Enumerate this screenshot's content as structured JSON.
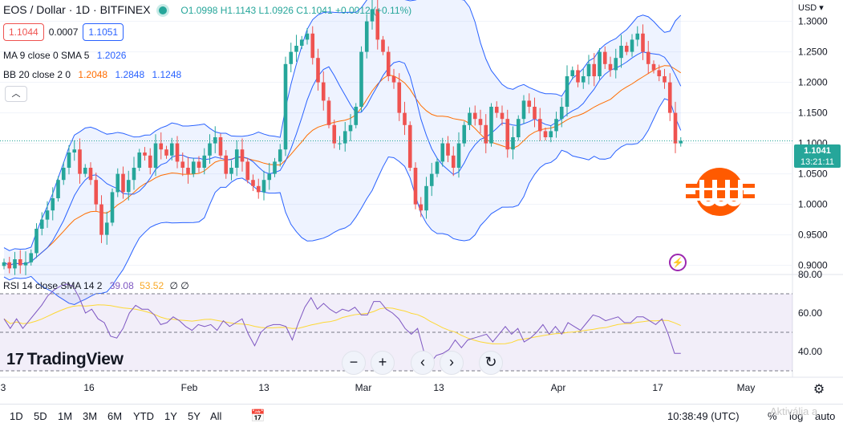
{
  "header": {
    "symbol": "EOS / Dollar · 1D · BITFINEX",
    "ohlc": "O1.0998  H1.1143  L1.0926  C1.1041  +0.0012 (+0.11%)"
  },
  "prices": {
    "sell": "1.1044",
    "spread": "0.0007",
    "buy": "1.1051"
  },
  "indicators": {
    "ma_label": "MA 9 close 0 SMA 5",
    "ma_value": "1.2026",
    "bb_label": "BB 20 close 2 0",
    "bb_mid": "1.2048",
    "bb_up": "1.2848",
    "bb_low": "1.1248",
    "rsi_label": "RSI 14 close SMA 14 2",
    "rsi_value": "39.08",
    "rsi_sma": "53.52",
    "rsi_extra": "∅ ∅"
  },
  "last_price": {
    "value": "1.1041",
    "countdown": "13:21:11"
  },
  "logo": "TradingView",
  "watermark": "Aktiválja a",
  "toolbar": {
    "ranges": [
      "1D",
      "5D",
      "1M",
      "3M",
      "6M",
      "YTD",
      "1Y",
      "5Y",
      "All"
    ],
    "time": "10:38:49 (UTC)",
    "percent": "%",
    "log": "log",
    "auto": "auto"
  },
  "nav_buttons": {
    "zoom_out": "−",
    "zoom_in": "+",
    "left": "‹",
    "right": "›",
    "reset": "↻"
  },
  "colors": {
    "up": "#26a69a",
    "down": "#ef5350",
    "band": "#2962ff",
    "basis": "#ff6d00",
    "rsi": "#7e57c2",
    "rsi_ma": "#fdd835"
  },
  "chart_data": {
    "type": "candlestick",
    "currency": "USD",
    "price_axis": {
      "ticks": [
        "1.3000",
        "1.2500",
        "1.2000",
        "1.1500",
        "1.1000",
        "1.0500",
        "1.0000",
        "0.9500",
        "0.9000"
      ],
      "range": [
        0.885,
        1.335
      ]
    },
    "rsi_axis": {
      "ticks": [
        "80.00",
        "60.00",
        "40.00"
      ],
      "range": [
        30,
        80
      ],
      "bands": [
        70,
        50,
        30
      ]
    },
    "x_labels": [
      "3",
      "16",
      "Feb",
      "13",
      "Mar",
      "13",
      "Apr",
      "17",
      "May"
    ],
    "close": [
      0.905,
      0.895,
      0.91,
      0.9,
      0.905,
      0.92,
      0.96,
      0.975,
      0.99,
      1.01,
      1.04,
      1.06,
      1.085,
      1.09,
      1.05,
      1.06,
      1.04,
      1.0,
      0.95,
      0.97,
      1.02,
      1.05,
      1.02,
      1.04,
      1.06,
      1.085,
      1.08,
      1.06,
      1.1,
      1.09,
      1.08,
      1.1,
      1.07,
      1.06,
      1.05,
      1.07,
      1.06,
      1.08,
      1.1,
      1.11,
      1.08,
      1.05,
      1.06,
      1.09,
      1.07,
      1.04,
      1.03,
      1.02,
      1.04,
      1.05,
      1.07,
      1.09,
      1.23,
      1.25,
      1.26,
      1.27,
      1.28,
      1.24,
      1.2,
      1.17,
      1.13,
      1.1,
      1.1,
      1.12,
      1.13,
      1.16,
      1.25,
      1.3,
      1.32,
      1.27,
      1.25,
      1.21,
      1.2,
      1.15,
      1.13,
      1.06,
      1.0,
      0.99,
      1.03,
      1.05,
      1.07,
      1.1,
      1.08,
      1.06,
      1.1,
      1.13,
      1.15,
      1.14,
      1.13,
      1.1,
      1.16,
      1.15,
      1.14,
      1.09,
      1.11,
      1.14,
      1.17,
      1.16,
      1.14,
      1.12,
      1.11,
      1.12,
      1.14,
      1.16,
      1.21,
      1.22,
      1.2,
      1.21,
      1.23,
      1.21,
      1.25,
      1.23,
      1.22,
      1.24,
      1.26,
      1.25,
      1.27,
      1.28,
      1.25,
      1.23,
      1.22,
      1.21,
      1.2,
      1.15,
      1.1,
      1.1041
    ],
    "rsi": [
      57,
      52,
      57,
      52,
      56,
      60,
      64,
      69,
      72,
      74,
      75,
      74,
      68,
      60,
      62,
      57,
      55,
      48,
      47,
      52,
      60,
      64,
      62,
      62,
      59,
      54,
      55,
      58,
      56,
      53,
      51,
      54,
      53,
      54,
      51,
      56,
      53,
      55,
      57,
      49,
      43,
      50,
      53,
      54,
      54,
      53,
      46,
      55,
      63,
      68,
      62,
      65,
      62,
      60,
      62,
      61,
      63,
      59,
      59,
      66,
      66,
      62,
      60,
      57,
      52,
      49,
      52,
      40,
      34,
      38,
      39,
      41,
      46,
      42,
      46,
      47,
      48,
      49,
      45,
      49,
      53,
      49,
      52,
      45,
      47,
      50,
      54,
      49,
      53,
      49,
      55,
      53,
      51,
      55,
      59,
      58,
      56,
      57,
      58,
      55,
      55,
      58,
      58,
      56,
      54,
      57,
      49,
      39.08,
      39.08
    ]
  }
}
